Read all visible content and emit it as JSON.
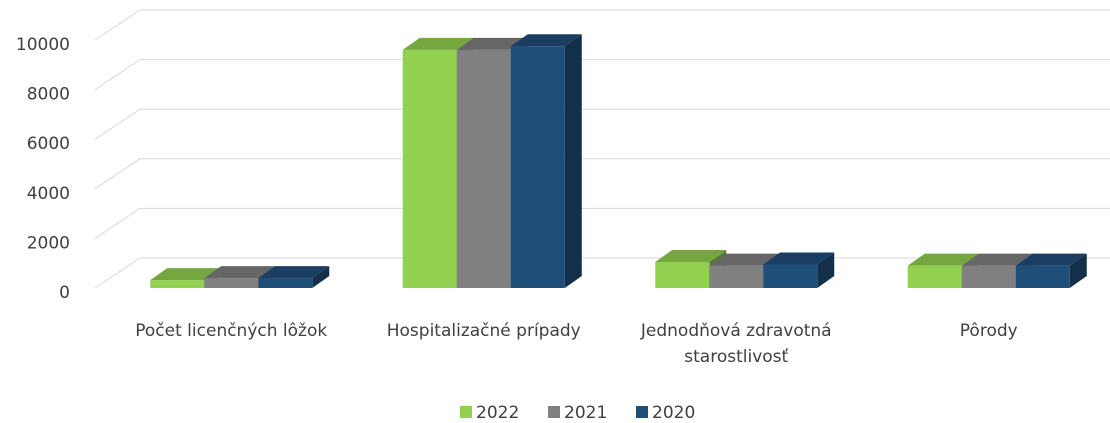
{
  "chart_data": {
    "type": "bar3d",
    "categories": [
      "Počet licenčných lôžok",
      "Hospitalizačné prípady",
      "Jednodňová zdravotná starostlivosť",
      "Pôrody"
    ],
    "series": [
      {
        "name": "2022",
        "color": "#92d050",
        "values": [
          320,
          9600,
          1050,
          900
        ]
      },
      {
        "name": "2021",
        "color": "#808080",
        "values": [
          400,
          9600,
          900,
          900
        ]
      },
      {
        "name": "2020",
        "color": "#1f4e79",
        "values": [
          400,
          9750,
          950,
          900
        ]
      }
    ],
    "ylim": [
      0,
      10000
    ],
    "yticks": [
      0,
      2000,
      4000,
      6000,
      8000,
      10000
    ],
    "grid": true,
    "legend": "bottom"
  }
}
